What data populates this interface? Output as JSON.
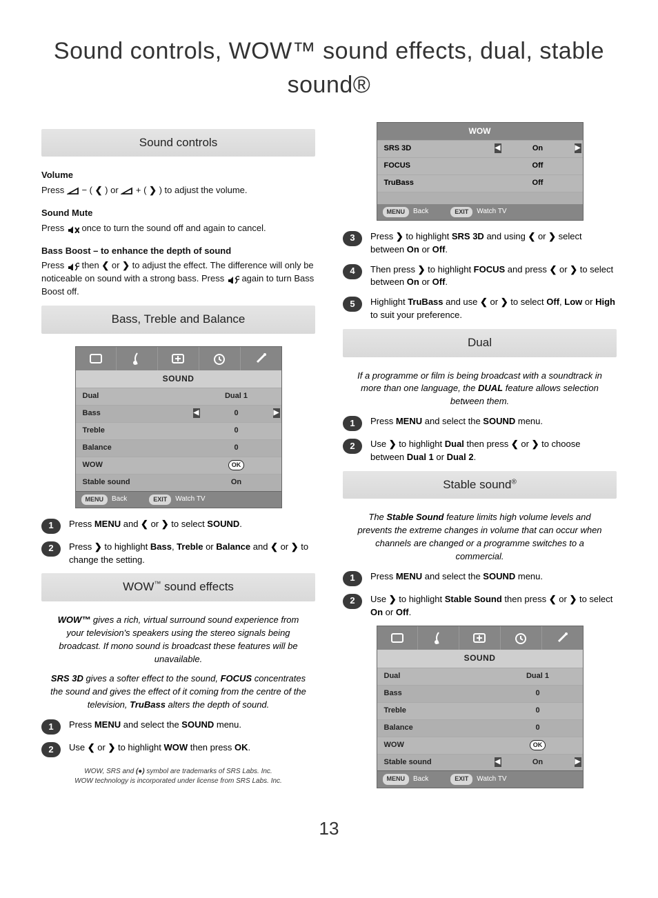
{
  "page": {
    "title": "Sound controls, WOW™ sound effects, dual, stable sound®",
    "number": "13"
  },
  "left": {
    "section1_title": "Sound controls",
    "volume": {
      "heading": "Volume",
      "text_a": "Press ",
      "text_b": " ( ",
      "text_c": " ) or ",
      "text_d": " ( ",
      "text_e": " ) to adjust the volume."
    },
    "mute": {
      "heading": "Sound Mute",
      "text": "Press 🔇 once to turn the sound off and again to cancel."
    },
    "bassboost": {
      "heading": "Bass Boost – to enhance the depth of sound",
      "text": "Press ⟨sound⟩ then ❮ or ❯ to adjust the effect. The difference will only be noticeable on sound with a strong bass. Press ⟨sound⟩ again to turn Bass Boost off."
    },
    "section2_title": "Bass, Treble and Balance",
    "osd_sound": {
      "title": "SOUND",
      "rows": [
        {
          "label": "Dual",
          "value": "Dual 1",
          "arrows": false
        },
        {
          "label": "Bass",
          "value": "0",
          "arrows": true
        },
        {
          "label": "Treble",
          "value": "0",
          "arrows": false
        },
        {
          "label": "Balance",
          "value": "0",
          "arrows": false
        },
        {
          "label": "WOW",
          "value": "OK",
          "arrows": false,
          "ok": true
        },
        {
          "label": "Stable sound",
          "value": "On",
          "arrows": false
        }
      ],
      "footer": {
        "menu": "MENU",
        "back": "Back",
        "exit": "EXIT",
        "watch": "Watch TV"
      }
    },
    "step1": "Press <b>MENU</b> and ❮ or ❯ to select <b>SOUND</b>.",
    "step2": "Press ❯ to highlight <b>Bass</b>, <b>Treble</b> or <b>Balance</b> and ❮ or ❯ to change the setting.",
    "section3_title": "WOW™ sound effects",
    "wow_intro": "<b><i>WOW™</i></b> gives a rich, virtual surround sound experience from your television's speakers using the stereo signals being broadcast. If mono sound is broadcast these features will be unavailable.",
    "wow_detail": "<b><i>SRS 3D</i></b> gives a softer effect to the sound, <b><i>FOCUS</i></b> concentrates the sound and gives the effect of it coming from the centre of the television, <b><i>TruBass</i></b> alters the depth of sound.",
    "wow_step1": "Press <b>MENU</b> and select the <b>SOUND</b> menu.",
    "wow_step2": "Use ❮ or ❯ to highlight <b>WOW</b> then press <b>OK</b>.",
    "trademark": "WOW, SRS and (●) symbol are trademarks of SRS Labs. Inc.\nWOW technology is incorporated under license from SRS Labs. Inc."
  },
  "right": {
    "osd_wow": {
      "title": "WOW",
      "rows": [
        {
          "label": "SRS 3D",
          "value": "On",
          "arrows": true
        },
        {
          "label": "FOCUS",
          "value": "Off",
          "arrows": false
        },
        {
          "label": "TruBass",
          "value": "Off",
          "arrows": false
        }
      ],
      "footer": {
        "menu": "MENU",
        "back": "Back",
        "exit": "EXIT",
        "watch": "Watch TV"
      }
    },
    "step3": "Press ❯ to highlight <b>SRS 3D</b> and using ❮ or ❯ select between <b>On</b> or <b>Off</b>.",
    "step4": "Then press ❯ to highlight <b>FOCUS</b> and press ❮ or ❯ to select between <b>On</b> or <b>Off</b>.",
    "step5": "Highlight <b>TruBass</b> and use ❮ or ❯ to select <b>Off</b>, <b>Low</b> or <b>High</b> to suit your preference.",
    "section_dual_title": "Dual",
    "dual_intro": "If a programme or film is being broadcast with a soundtrack in more than one language, the <b>DUAL</b> feature allows selection between them.",
    "dual_step1": "Press <b>MENU</b> and select the <b>SOUND</b> menu.",
    "dual_step2": "Use ❯ to highlight <b>Dual</b> then press ❮ or ❯ to choose between <b>Dual 1</b> or <b>Dual 2</b>.",
    "section_stable_title": "Stable sound®",
    "stable_intro": "The <b>Stable Sound</b> feature limits high volume levels and prevents the extreme changes in volume that can occur when channels are changed or a programme switches to a commercial.",
    "stable_step1": "Press <b>MENU</b> and select the <b>SOUND</b> menu.",
    "stable_step2": "Use ❯ to highlight <b>Stable Sound</b> then press ❮ or ❯ to select <b>On</b> or <b>Off</b>.",
    "osd_sound2": {
      "title": "SOUND",
      "rows": [
        {
          "label": "Dual",
          "value": "Dual 1",
          "arrows": false
        },
        {
          "label": "Bass",
          "value": "0",
          "arrows": false
        },
        {
          "label": "Treble",
          "value": "0",
          "arrows": false
        },
        {
          "label": "Balance",
          "value": "0",
          "arrows": false
        },
        {
          "label": "WOW",
          "value": "OK",
          "arrows": false,
          "ok": true
        },
        {
          "label": "Stable sound",
          "value": "On",
          "arrows": true
        }
      ],
      "footer": {
        "menu": "MENU",
        "back": "Back",
        "exit": "EXIT",
        "watch": "Watch TV"
      }
    }
  },
  "style": {
    "page_bg": "#ffffff",
    "section_title_bg": "#dedede",
    "osd_bg": "#b8b8b8",
    "osd_header_bg": "#868686",
    "osd_title_bg": "#cfcfcf",
    "badge_bg": "#3a3a3a",
    "text": "#111111"
  }
}
